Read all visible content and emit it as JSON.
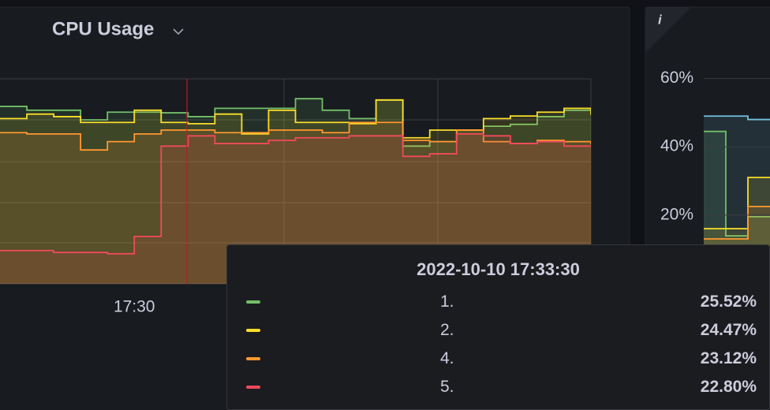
{
  "chart_data": [
    {
      "type": "line",
      "title": "CPU Usage",
      "categories": [
        null,
        null,
        null,
        null,
        null,
        "17:30",
        null,
        null,
        null,
        null,
        null,
        null,
        null,
        null,
        null,
        null,
        null,
        null,
        null,
        null,
        null,
        null,
        null
      ],
      "ylim": [
        0,
        32
      ],
      "series": [
        {
          "name": "1.",
          "color": "#73bf69",
          "values": [
            27.7,
            27.1,
            27.1,
            25.6,
            26.8,
            26.8,
            26.7,
            26.1,
            27.4,
            27.4,
            27.4,
            28.9,
            27.1,
            25.8,
            28.7,
            21.5,
            22.2,
            24.0,
            24.6,
            24.9,
            26.1,
            27.1,
            27.3
          ]
        },
        {
          "name": "2.",
          "color": "#fade2a",
          "values": [
            25.8,
            26.5,
            26.1,
            25.2,
            25.2,
            27.1,
            25.2,
            25.0,
            26.5,
            23.4,
            27.1,
            25.2,
            25.2,
            25.0,
            28.7,
            22.8,
            24.0,
            24.0,
            25.8,
            26.2,
            26.8,
            27.4,
            26.5
          ]
        },
        {
          "name": "4.",
          "color": "#ff9830",
          "values": [
            23.6,
            23.4,
            23.4,
            20.9,
            22.2,
            23.4,
            24.0,
            24.0,
            23.6,
            23.6,
            24.0,
            24.0,
            23.6,
            25.2,
            25.2,
            22.4,
            22.2,
            24.0,
            22.2,
            21.9,
            22.4,
            22.2,
            21.9
          ]
        },
        {
          "name": "5.",
          "color": "#f2495c",
          "values": [
            5.2,
            5.2,
            4.9,
            4.9,
            4.7,
            7.4,
            21.5,
            23.1,
            21.9,
            21.9,
            22.4,
            22.8,
            22.8,
            23.1,
            23.1,
            19.9,
            20.3,
            23.4,
            23.1,
            21.9,
            22.2,
            21.5,
            21.5
          ]
        }
      ]
    },
    {
      "type": "line",
      "categories": [
        null,
        null,
        null,
        null
      ],
      "ylim": [
        10,
        65
      ],
      "yticks": [
        {
          "value": 60,
          "label": "60%"
        },
        {
          "value": 40,
          "label": "40%"
        },
        {
          "value": 20,
          "label": "20%"
        }
      ],
      "series": [
        {
          "color": "#73c0de",
          "values": [
            49,
            49,
            48,
            48
          ]
        },
        {
          "color": "#73bf69",
          "values": [
            44.5,
            13.9,
            19.5,
            19.5
          ]
        },
        {
          "color": "#fade2a",
          "values": [
            16,
            16,
            31,
            31
          ]
        },
        {
          "color": "#ff9830",
          "values": [
            13,
            13,
            22.5,
            22.5
          ]
        }
      ]
    }
  ],
  "info_icon": "i",
  "tooltip": {
    "time": "2022-10-10 17:33:30",
    "rows": [
      {
        "label": "1.",
        "value": "25.52%",
        "color": "#73bf69"
      },
      {
        "label": "2.",
        "value": "24.47%",
        "color": "#fade2a"
      },
      {
        "label": "4.",
        "value": "23.12%",
        "color": "#ff9830"
      },
      {
        "label": "5.",
        "value": "22.80%",
        "color": "#f2495c"
      }
    ]
  }
}
